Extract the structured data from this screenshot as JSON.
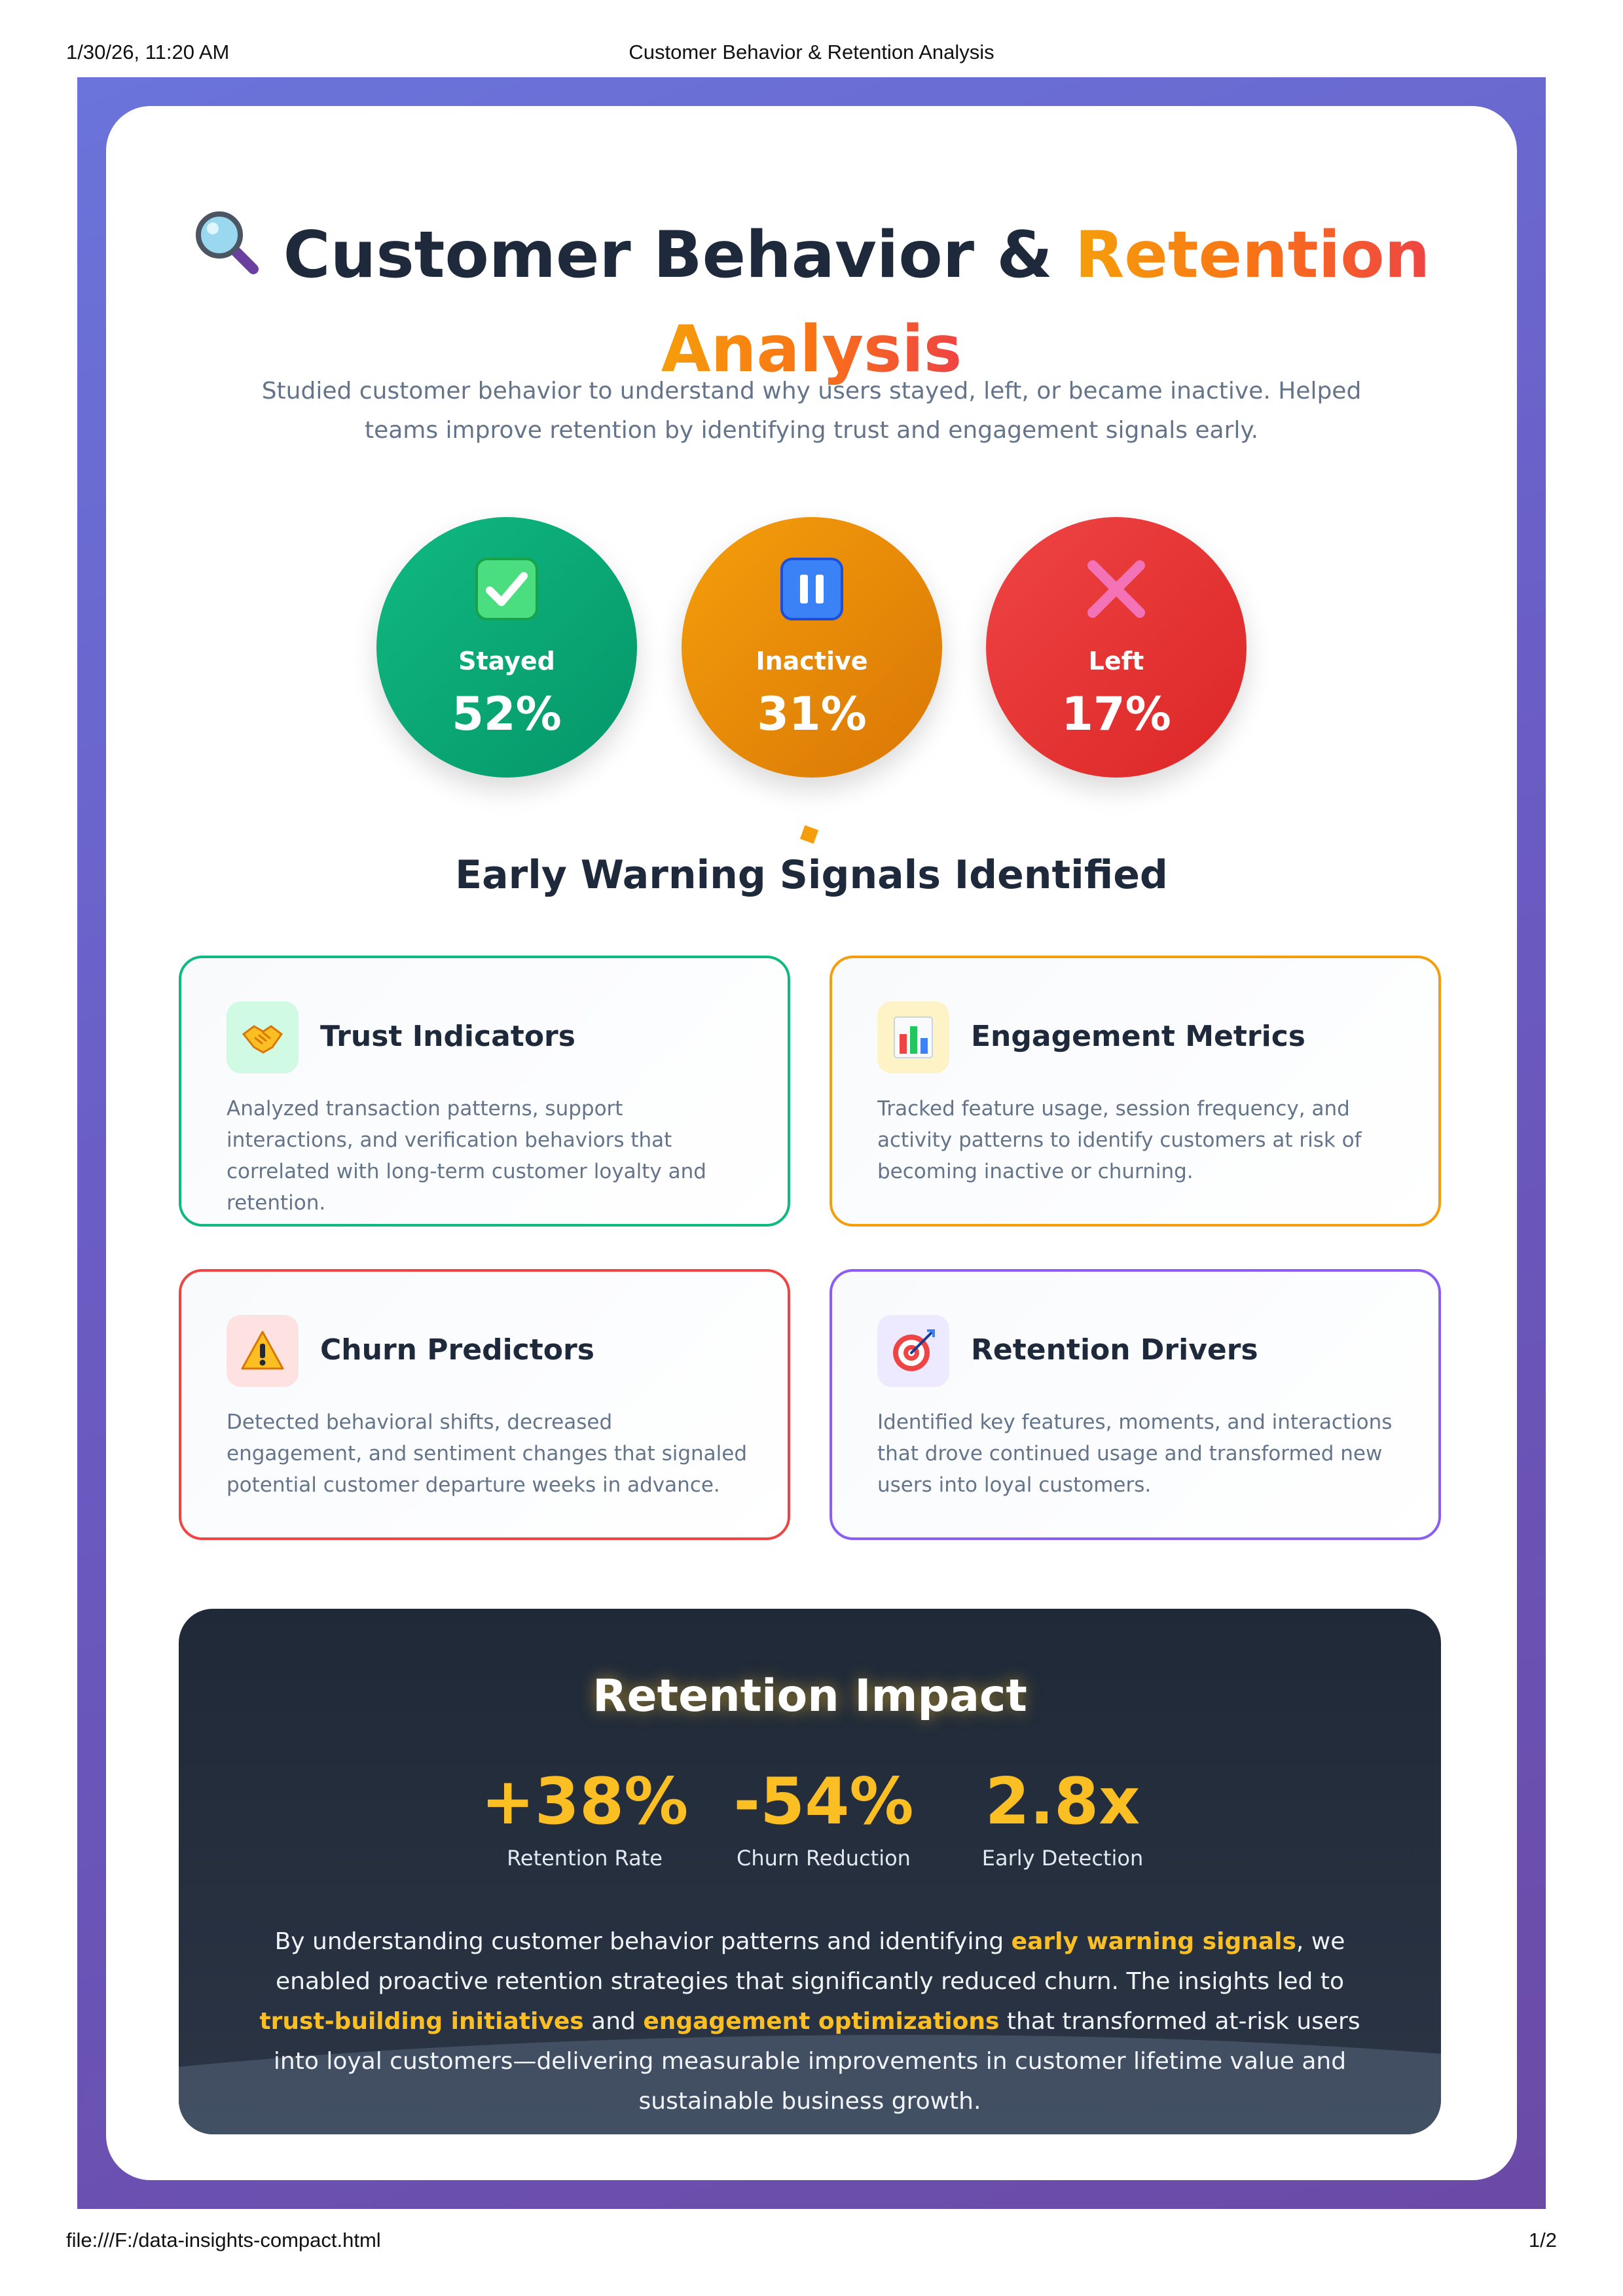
{
  "print": {
    "datetime": "1/30/26, 11:20 AM",
    "doc_title": "Customer Behavior & Retention Analysis",
    "file_path": "file:///F:/data-insights-compact.html",
    "page_number": "1/2"
  },
  "header": {
    "title_main": "Customer Behavior & ",
    "title_accent_1": "Retention",
    "title_accent_2": "Analysis",
    "title_icon": "magnifying-glass-icon",
    "subtitle": "Studied customer behavior to understand why users stayed, left, or became inactive. Helped teams improve retention by identifying trust and engagement signals early."
  },
  "outcomes": [
    {
      "label": "Stayed",
      "value": "52%",
      "icon": "check-mark-icon",
      "color": "#10b981"
    },
    {
      "label": "Inactive",
      "value": "31%",
      "icon": "pause-icon",
      "color": "#f59e0b"
    },
    {
      "label": "Left",
      "value": "17%",
      "icon": "cross-mark-icon",
      "color": "#ef4444"
    }
  ],
  "signals_section": {
    "title": "Early Warning Signals Identified",
    "cards": [
      {
        "title": "Trust Indicators",
        "icon": "handshake-icon",
        "color": "#10b981",
        "description": "Analyzed transaction patterns, support interactions, and verification behaviors that correlated with long-term customer loyalty and retention."
      },
      {
        "title": "Engagement Metrics",
        "icon": "bar-chart-icon",
        "color": "#f59e0b",
        "description": "Tracked feature usage, session frequency, and activity patterns to identify customers at risk of becoming inactive or churning."
      },
      {
        "title": "Churn Predictors",
        "icon": "warning-icon",
        "color": "#ef4444",
        "description": "Detected behavioral shifts, decreased engagement, and sentiment changes that signaled potential customer departure weeks in advance."
      },
      {
        "title": "Retention Drivers",
        "icon": "target-icon",
        "color": "#8b5cf6",
        "description": "Identified key features, moments, and interactions that drove continued usage and transformed new users into loyal customers."
      }
    ]
  },
  "impact": {
    "title": "Retention Impact",
    "metrics": [
      {
        "value": "+38%",
        "label": "Retention Rate"
      },
      {
        "value": "-54%",
        "label": "Churn Reduction"
      },
      {
        "value": "2.8x",
        "label": "Early Detection"
      }
    ],
    "text_1": "By understanding customer behavior patterns and identifying ",
    "highlight_1": "early warning signals",
    "text_2": ", we enabled proactive retention strategies that significantly reduced churn. The insights led to ",
    "highlight_2": "trust-building initiatives",
    "text_3": " and ",
    "highlight_3": "engagement optimizations",
    "text_4": " that transformed at-risk users into loyal customers—delivering measurable improvements in customer lifetime value and sustainable business growth.",
    "highlight_color": "#fbbf24"
  }
}
